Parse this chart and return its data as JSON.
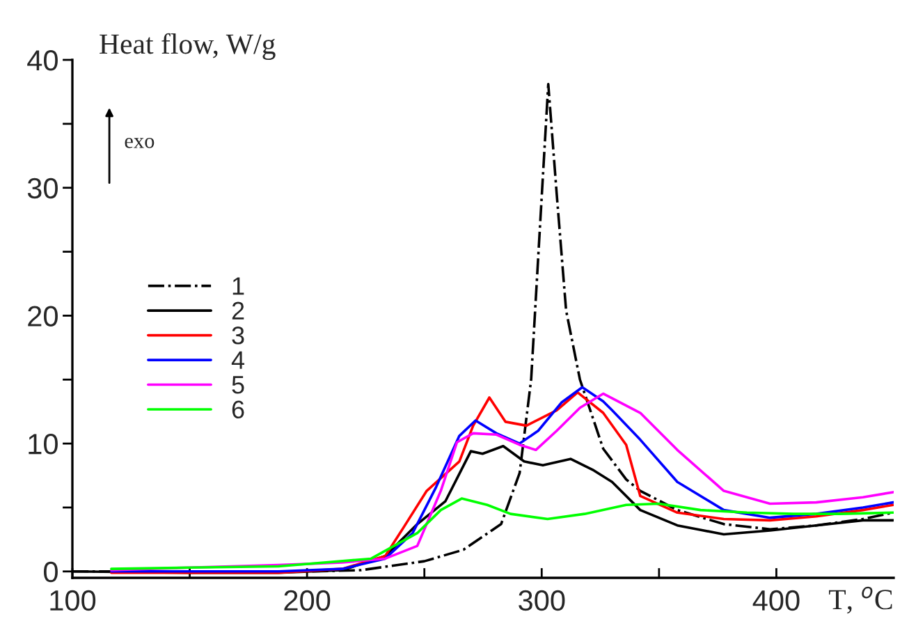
{
  "chart_data": {
    "type": "line",
    "ylabel": "Heat flow, W/g",
    "xlabel": "T, $^{o}$C",
    "annotations": [
      "exo"
    ],
    "xlim": [
      100,
      450
    ],
    "ylim": [
      -0.5,
      40
    ],
    "xticks": [
      100,
      {
        "value": 150,
        "label": null
      },
      200,
      {
        "value": 250,
        "label": null
      },
      300,
      {
        "value": 350,
        "label": null
      },
      400
    ],
    "yticks": [
      0,
      {
        "value": 5,
        "label": null
      },
      10,
      {
        "value": 15,
        "label": null
      },
      20,
      {
        "value": 25,
        "label": null
      },
      30,
      {
        "value": 35,
        "label": null
      },
      40
    ],
    "grid": false,
    "legend": "left",
    "series": [
      {
        "name": "1",
        "color": "#000000",
        "line_style": "dashdot",
        "x": [
          100,
          150,
          200,
          223,
          250,
          266.7,
          282.7,
          290.6,
          295.5,
          299.5,
          302.8,
          306.4,
          310.4,
          316.3,
          326.2,
          336,
          342,
          357.8,
          377.6,
          397.3,
          417,
          436.9,
          449.8
        ],
        "values": [
          0,
          0,
          0,
          0.1,
          0.8,
          1.7,
          3.7,
          7.7,
          15,
          27.7,
          38.1,
          29.5,
          20.4,
          15,
          9.6,
          7.2,
          6.3,
          4.8,
          3.7,
          3.3,
          3.6,
          4.1,
          4.6
        ]
      },
      {
        "name": "2",
        "color": "#000000",
        "line_style": "solid",
        "x": [
          100,
          150,
          187.8,
          215,
          233.3,
          247,
          259,
          269.8,
          274.8,
          283.6,
          292.5,
          300.5,
          312.3,
          322.2,
          330,
          342,
          357.8,
          377.6,
          397.3,
          417,
          436.9,
          449.8
        ],
        "values": [
          0,
          -0.1,
          -0.1,
          0.1,
          1.2,
          3.7,
          5.5,
          9.4,
          9.2,
          9.8,
          8.6,
          8.3,
          8.8,
          7.9,
          7.0,
          4.8,
          3.6,
          2.9,
          3.2,
          3.6,
          4.0,
          4.0
        ]
      },
      {
        "name": "3",
        "color": "#ff0000",
        "line_style": "solid",
        "x": [
          116.6,
          150,
          187.8,
          215,
          233.3,
          241,
          251,
          264.9,
          270.8,
          277.7,
          284.6,
          293.5,
          306.4,
          315.3,
          326.2,
          336,
          342,
          357.8,
          377.6,
          397.3,
          417,
          436.9,
          449.8
        ],
        "values": [
          -0.1,
          -0.1,
          -0.1,
          0.2,
          1.2,
          3.4,
          6.3,
          8.6,
          11.4,
          13.6,
          11.7,
          11.4,
          12.6,
          14.0,
          12.4,
          9.9,
          5.9,
          4.6,
          4.1,
          4.0,
          4.3,
          4.8,
          5.2
        ]
      },
      {
        "name": "4",
        "color": "#0000ff",
        "line_style": "solid",
        "x": [
          116.6,
          150,
          187.8,
          215,
          233.3,
          245,
          255,
          264.9,
          271.8,
          280.7,
          290.6,
          298.5,
          308.4,
          317.3,
          326.2,
          330,
          342,
          357.8,
          377.6,
          397.3,
          417,
          436.9,
          449.8
        ],
        "values": [
          0,
          0.0,
          0,
          0.2,
          1.0,
          3.0,
          6.6,
          10.6,
          11.8,
          10.8,
          10.0,
          11.0,
          13.2,
          14.4,
          13.3,
          12.6,
          10.3,
          7.0,
          4.8,
          4.2,
          4.5,
          5.0,
          5.4
        ]
      },
      {
        "name": "5",
        "color": "#ff00ff",
        "line_style": "solid",
        "x": [
          116.6,
          150,
          187.8,
          215,
          233.3,
          247,
          257,
          263.9,
          270.8,
          280.7,
          290.6,
          297.5,
          306.4,
          316.3,
          326.2,
          342,
          357.8,
          377.6,
          397.3,
          417,
          436.9,
          449.8
        ],
        "values": [
          0.1,
          0.3,
          0.5,
          0.7,
          1.0,
          2.0,
          6.3,
          10.1,
          10.8,
          10.7,
          9.9,
          9.5,
          11.0,
          12.8,
          13.9,
          12.4,
          9.5,
          6.3,
          5.3,
          5.4,
          5.8,
          6.2
        ]
      },
      {
        "name": "6",
        "color": "#00ff00",
        "line_style": "solid",
        "x": [
          116.6,
          150,
          187.8,
          227.3,
          247,
          257,
          265.9,
          276.8,
          286.7,
          302.5,
          318.3,
          336,
          349.9,
          367.7,
          387.5,
          407.3,
          427,
          449.8
        ],
        "values": [
          0.2,
          0.3,
          0.4,
          1.0,
          3.0,
          4.8,
          5.7,
          5.2,
          4.5,
          4.1,
          4.5,
          5.2,
          5.3,
          4.8,
          4.6,
          4.5,
          4.5,
          4.6
        ]
      }
    ]
  }
}
